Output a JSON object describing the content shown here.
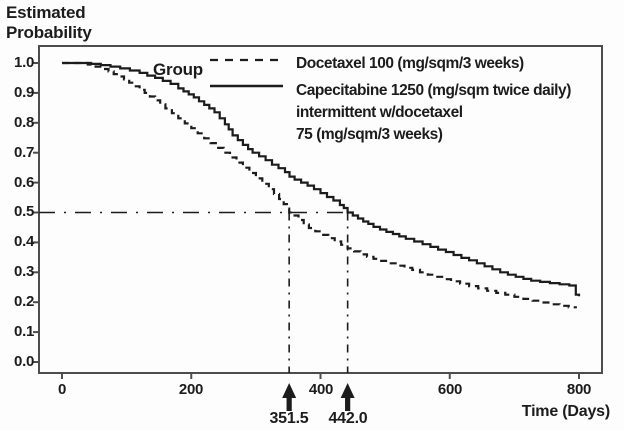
{
  "title": {
    "line1": "Estimated",
    "line2": "Probability"
  },
  "axes": {
    "y_tick_labels": [
      "1.0",
      "0.9",
      "0.8",
      "0.7",
      "0.6",
      "0.5",
      "0.4",
      "0.3",
      "0.2",
      "0.1",
      "0.0"
    ],
    "x_tick_labels": [
      "0",
      "200",
      "400",
      "600",
      "800"
    ],
    "x_axis_title": "Time (Days)"
  },
  "legend": {
    "group_label": "Group",
    "docetaxel_label": "Docetaxel 100 (mg/sqm/3 weeks)",
    "capecitabine_label_line1": "Capecitabine 1250 (mg/sqm twice daily)",
    "capecitabine_label_line2": "intermittent w/docetaxel",
    "capecitabine_label_line3": "75 (mg/sqm/3 weeks)"
  },
  "annotations": {
    "median_docetaxel": "351.5",
    "median_capecitabine": "442.0"
  },
  "colors": {
    "line": "#1c1c1c",
    "frame": "#4d4d4d",
    "text": "#1c1c1c",
    "background": "#fdfdfd"
  },
  "chart_data": {
    "type": "line",
    "subtype": "kaplan-meier-step",
    "title": "Estimated Probability vs Time",
    "xlabel": "Time (Days)",
    "ylabel": "Estimated Probability",
    "xlim": [
      0,
      800
    ],
    "ylim": [
      0.0,
      1.0
    ],
    "x_ticks": [
      0,
      200,
      400,
      600,
      800
    ],
    "y_ticks": [
      0,
      0.1,
      0.2,
      0.3,
      0.4,
      0.5,
      0.6,
      0.7,
      0.8,
      0.9,
      1.0
    ],
    "grid": false,
    "legend_position": "top-right-inside",
    "reference_probability": 0.5,
    "medians": {
      "docetaxel_100": 351.5,
      "capecitabine_plus_docetaxel": 442.0
    },
    "series": [
      {
        "name": "Capecitabine 1250 (mg/sqm twice daily) intermittent w/docetaxel 75 (mg/sqm/3 weeks)",
        "line_style": "solid",
        "points": [
          [
            0,
            1.0
          ],
          [
            45,
            0.997
          ],
          [
            60,
            0.993
          ],
          [
            75,
            0.988
          ],
          [
            90,
            0.982
          ],
          [
            105,
            0.975
          ],
          [
            120,
            0.967
          ],
          [
            132,
            0.958
          ],
          [
            144,
            0.95
          ],
          [
            156,
            0.94
          ],
          [
            168,
            0.93
          ],
          [
            180,
            0.915
          ],
          [
            188,
            0.905
          ],
          [
            196,
            0.895
          ],
          [
            204,
            0.885
          ],
          [
            212,
            0.872
          ],
          [
            220,
            0.86
          ],
          [
            228,
            0.848
          ],
          [
            236,
            0.835
          ],
          [
            244,
            0.815
          ],
          [
            252,
            0.795
          ],
          [
            258,
            0.778
          ],
          [
            264,
            0.758
          ],
          [
            272,
            0.742
          ],
          [
            280,
            0.726
          ],
          [
            288,
            0.712
          ],
          [
            295,
            0.7
          ],
          [
            305,
            0.688
          ],
          [
            315,
            0.675
          ],
          [
            325,
            0.66
          ],
          [
            335,
            0.648
          ],
          [
            345,
            0.635
          ],
          [
            352,
            0.62
          ],
          [
            360,
            0.61
          ],
          [
            370,
            0.6
          ],
          [
            380,
            0.59
          ],
          [
            390,
            0.578
          ],
          [
            400,
            0.565
          ],
          [
            410,
            0.552
          ],
          [
            420,
            0.54
          ],
          [
            430,
            0.525
          ],
          [
            436,
            0.515
          ],
          [
            442,
            0.5
          ],
          [
            450,
            0.49
          ],
          [
            458,
            0.48
          ],
          [
            466,
            0.47
          ],
          [
            474,
            0.462
          ],
          [
            482,
            0.452
          ],
          [
            492,
            0.443
          ],
          [
            502,
            0.435
          ],
          [
            512,
            0.428
          ],
          [
            522,
            0.42
          ],
          [
            532,
            0.412
          ],
          [
            545,
            0.403
          ],
          [
            558,
            0.394
          ],
          [
            570,
            0.385
          ],
          [
            582,
            0.376
          ],
          [
            594,
            0.368
          ],
          [
            606,
            0.358
          ],
          [
            618,
            0.348
          ],
          [
            630,
            0.34
          ],
          [
            642,
            0.33
          ],
          [
            654,
            0.32
          ],
          [
            666,
            0.31
          ],
          [
            678,
            0.3
          ],
          [
            690,
            0.292
          ],
          [
            702,
            0.285
          ],
          [
            714,
            0.278
          ],
          [
            726,
            0.272
          ],
          [
            740,
            0.268
          ],
          [
            755,
            0.264
          ],
          [
            770,
            0.26
          ],
          [
            785,
            0.256
          ],
          [
            795,
            0.225
          ],
          [
            800,
            0.22
          ]
        ]
      },
      {
        "name": "Docetaxel 100 (mg/sqm/3 weeks)",
        "line_style": "dashed",
        "points": [
          [
            0,
            1.0
          ],
          [
            40,
            0.995
          ],
          [
            52,
            0.988
          ],
          [
            62,
            0.98
          ],
          [
            72,
            0.972
          ],
          [
            80,
            0.963
          ],
          [
            88,
            0.955
          ],
          [
            96,
            0.945
          ],
          [
            104,
            0.934
          ],
          [
            112,
            0.922
          ],
          [
            120,
            0.91
          ],
          [
            128,
            0.9
          ],
          [
            136,
            0.888
          ],
          [
            144,
            0.875
          ],
          [
            152,
            0.862
          ],
          [
            160,
            0.848
          ],
          [
            170,
            0.832
          ],
          [
            180,
            0.815
          ],
          [
            190,
            0.798
          ],
          [
            200,
            0.782
          ],
          [
            210,
            0.765
          ],
          [
            220,
            0.748
          ],
          [
            230,
            0.732
          ],
          [
            240,
            0.716
          ],
          [
            250,
            0.7
          ],
          [
            260,
            0.684
          ],
          [
            270,
            0.667
          ],
          [
            280,
            0.65
          ],
          [
            290,
            0.632
          ],
          [
            300,
            0.614
          ],
          [
            310,
            0.596
          ],
          [
            320,
            0.578
          ],
          [
            328,
            0.562
          ],
          [
            336,
            0.545
          ],
          [
            343,
            0.528
          ],
          [
            348,
            0.513
          ],
          [
            351.5,
            0.5
          ],
          [
            358,
            0.49
          ],
          [
            366,
            0.475
          ],
          [
            374,
            0.46
          ],
          [
            382,
            0.448
          ],
          [
            392,
            0.437
          ],
          [
            402,
            0.425
          ],
          [
            412,
            0.414
          ],
          [
            422,
            0.403
          ],
          [
            432,
            0.392
          ],
          [
            442,
            0.38
          ],
          [
            452,
            0.37
          ],
          [
            462,
            0.36
          ],
          [
            472,
            0.352
          ],
          [
            482,
            0.345
          ],
          [
            494,
            0.338
          ],
          [
            506,
            0.33
          ],
          [
            518,
            0.322
          ],
          [
            530,
            0.315
          ],
          [
            542,
            0.308
          ],
          [
            554,
            0.3
          ],
          [
            566,
            0.292
          ],
          [
            578,
            0.285
          ],
          [
            590,
            0.277
          ],
          [
            602,
            0.27
          ],
          [
            616,
            0.262
          ],
          [
            630,
            0.254
          ],
          [
            644,
            0.246
          ],
          [
            658,
            0.238
          ],
          [
            672,
            0.231
          ],
          [
            686,
            0.225
          ],
          [
            700,
            0.218
          ],
          [
            714,
            0.211
          ],
          [
            728,
            0.205
          ],
          [
            742,
            0.199
          ],
          [
            756,
            0.193
          ],
          [
            770,
            0.188
          ],
          [
            784,
            0.183
          ],
          [
            795,
            0.18
          ]
        ]
      }
    ]
  }
}
